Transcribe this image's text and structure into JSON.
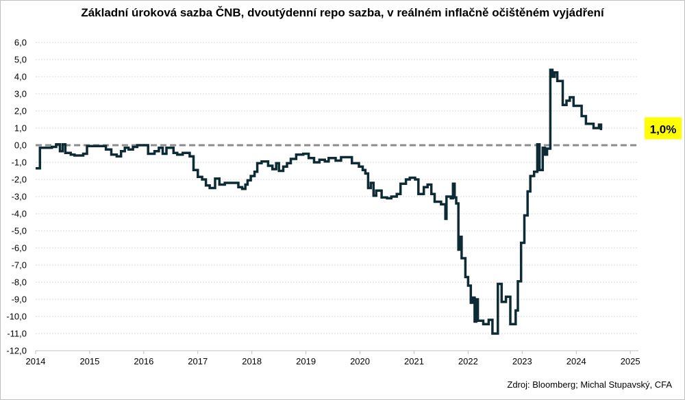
{
  "chart_data": {
    "type": "line",
    "title": "Základní úroková sazba ČNB, dvoutýdenní repo sazba, v reálném inflačně očištěném vyjádření",
    "xlabel": "",
    "ylabel": "",
    "xlim": [
      2014,
      2025.15
    ],
    "ylim": [
      -12,
      6
    ],
    "yticks": [
      "-12,0",
      "-11,0",
      "-10,0",
      "-9,0",
      "-8,0",
      "-7,0",
      "-6,0",
      "-5,0",
      "-4,0",
      "-3,0",
      "-2,0",
      "-1,0",
      "0,0",
      "1,0",
      "2,0",
      "3,0",
      "4,0",
      "5,0",
      "6,0"
    ],
    "xticks": [
      "2014",
      "2015",
      "2016",
      "2017",
      "2018",
      "2019",
      "2020",
      "2021",
      "2022",
      "2023",
      "2024",
      "2025"
    ],
    "grid": true,
    "reference_line": 0,
    "end_label": "1,0%",
    "source": "Zdroj: Bloomberg; Michal Stupavský, CFA",
    "series": [
      {
        "color": "#0d2b35",
        "points": [
          [
            2014.0,
            -1.35
          ],
          [
            2014.08,
            -1.35
          ],
          [
            2014.08,
            -0.15
          ],
          [
            2014.3,
            -0.15
          ],
          [
            2014.3,
            -0.1
          ],
          [
            2014.38,
            -0.1
          ],
          [
            2014.38,
            0.05
          ],
          [
            2014.45,
            0.05
          ],
          [
            2014.45,
            -0.35
          ],
          [
            2014.5,
            -0.35
          ],
          [
            2014.5,
            0.05
          ],
          [
            2014.55,
            0.05
          ],
          [
            2014.55,
            -0.45
          ],
          [
            2014.65,
            -0.45
          ],
          [
            2014.65,
            -0.55
          ],
          [
            2014.72,
            -0.55
          ],
          [
            2014.72,
            -0.6
          ],
          [
            2014.88,
            -0.6
          ],
          [
            2014.88,
            -0.5
          ],
          [
            2014.95,
            -0.5
          ],
          [
            2014.95,
            -0.05
          ],
          [
            2015.1,
            -0.05
          ],
          [
            2015.1,
            -0.05
          ],
          [
            2015.3,
            -0.05
          ],
          [
            2015.3,
            -0.25
          ],
          [
            2015.4,
            -0.25
          ],
          [
            2015.4,
            -0.55
          ],
          [
            2015.5,
            -0.55
          ],
          [
            2015.5,
            -0.65
          ],
          [
            2015.58,
            -0.65
          ],
          [
            2015.58,
            -0.35
          ],
          [
            2015.65,
            -0.35
          ],
          [
            2015.65,
            -0.15
          ],
          [
            2015.72,
            -0.15
          ],
          [
            2015.72,
            -0.25
          ],
          [
            2015.8,
            -0.25
          ],
          [
            2015.8,
            -0.1
          ],
          [
            2015.88,
            -0.1
          ],
          [
            2015.88,
            0.0
          ],
          [
            2016.08,
            0.0
          ],
          [
            2016.08,
            -0.5
          ],
          [
            2016.2,
            -0.5
          ],
          [
            2016.2,
            -0.35
          ],
          [
            2016.28,
            -0.35
          ],
          [
            2016.28,
            -0.15
          ],
          [
            2016.35,
            -0.15
          ],
          [
            2016.35,
            -0.5
          ],
          [
            2016.42,
            -0.5
          ],
          [
            2016.42,
            -0.15
          ],
          [
            2016.55,
            -0.15
          ],
          [
            2016.55,
            -0.45
          ],
          [
            2016.62,
            -0.45
          ],
          [
            2016.62,
            -0.55
          ],
          [
            2016.72,
            -0.55
          ],
          [
            2016.72,
            -0.45
          ],
          [
            2016.85,
            -0.45
          ],
          [
            2016.85,
            -0.65
          ],
          [
            2016.92,
            -0.65
          ],
          [
            2016.92,
            -1.45
          ],
          [
            2017.0,
            -1.45
          ],
          [
            2017.0,
            -1.85
          ],
          [
            2017.08,
            -1.85
          ],
          [
            2017.08,
            -2.0
          ],
          [
            2017.15,
            -2.0
          ],
          [
            2017.15,
            -2.35
          ],
          [
            2017.22,
            -2.35
          ],
          [
            2017.22,
            -2.5
          ],
          [
            2017.32,
            -2.5
          ],
          [
            2017.32,
            -1.95
          ],
          [
            2017.4,
            -1.95
          ],
          [
            2017.4,
            -2.3
          ],
          [
            2017.5,
            -2.3
          ],
          [
            2017.5,
            -2.2
          ],
          [
            2017.75,
            -2.2
          ],
          [
            2017.75,
            -2.45
          ],
          [
            2017.82,
            -2.45
          ],
          [
            2017.82,
            -2.55
          ],
          [
            2017.88,
            -2.55
          ],
          [
            2017.88,
            -2.3
          ],
          [
            2017.92,
            -2.3
          ],
          [
            2017.92,
            -2.05
          ],
          [
            2017.98,
            -2.05
          ],
          [
            2017.98,
            -1.8
          ],
          [
            2018.05,
            -1.8
          ],
          [
            2018.05,
            -1.55
          ],
          [
            2018.1,
            -1.55
          ],
          [
            2018.1,
            -1.05
          ],
          [
            2018.18,
            -1.05
          ],
          [
            2018.18,
            -0.95
          ],
          [
            2018.3,
            -0.95
          ],
          [
            2018.3,
            -1.2
          ],
          [
            2018.38,
            -1.2
          ],
          [
            2018.38,
            -1.4
          ],
          [
            2018.45,
            -1.4
          ],
          [
            2018.45,
            -1.05
          ],
          [
            2018.5,
            -1.05
          ],
          [
            2018.5,
            -1.5
          ],
          [
            2018.58,
            -1.5
          ],
          [
            2018.58,
            -1.25
          ],
          [
            2018.65,
            -1.25
          ],
          [
            2018.65,
            -1.05
          ],
          [
            2018.72,
            -1.05
          ],
          [
            2018.72,
            -0.8
          ],
          [
            2018.82,
            -0.8
          ],
          [
            2018.82,
            -0.55
          ],
          [
            2018.95,
            -0.55
          ],
          [
            2018.95,
            -0.5
          ],
          [
            2019.05,
            -0.5
          ],
          [
            2019.05,
            -0.75
          ],
          [
            2019.15,
            -0.75
          ],
          [
            2019.15,
            -1.0
          ],
          [
            2019.25,
            -1.0
          ],
          [
            2019.25,
            -0.85
          ],
          [
            2019.35,
            -0.85
          ],
          [
            2019.35,
            -0.95
          ],
          [
            2019.42,
            -0.95
          ],
          [
            2019.42,
            -0.75
          ],
          [
            2019.55,
            -0.75
          ],
          [
            2019.55,
            -0.9
          ],
          [
            2019.65,
            -0.9
          ],
          [
            2019.65,
            -0.7
          ],
          [
            2019.85,
            -0.7
          ],
          [
            2019.85,
            -1.05
          ],
          [
            2019.98,
            -1.05
          ],
          [
            2019.98,
            -1.25
          ],
          [
            2020.05,
            -1.25
          ],
          [
            2020.05,
            -1.45
          ],
          [
            2020.1,
            -1.45
          ],
          [
            2020.1,
            -1.65
          ],
          [
            2020.15,
            -1.65
          ],
          [
            2020.15,
            -2.5
          ],
          [
            2020.2,
            -2.5
          ],
          [
            2020.2,
            -2.2
          ],
          [
            2020.25,
            -2.2
          ],
          [
            2020.25,
            -2.95
          ],
          [
            2020.3,
            -2.95
          ],
          [
            2020.3,
            -2.65
          ],
          [
            2020.4,
            -2.65
          ],
          [
            2020.4,
            -3.05
          ],
          [
            2020.5,
            -3.05
          ],
          [
            2020.5,
            -3.1
          ],
          [
            2020.58,
            -3.1
          ],
          [
            2020.58,
            -3.0
          ],
          [
            2020.68,
            -3.0
          ],
          [
            2020.68,
            -2.85
          ],
          [
            2020.75,
            -2.85
          ],
          [
            2020.75,
            -2.25
          ],
          [
            2020.85,
            -2.25
          ],
          [
            2020.85,
            -2.0
          ],
          [
            2020.92,
            -2.0
          ],
          [
            2020.92,
            -1.9
          ],
          [
            2021.02,
            -1.9
          ],
          [
            2021.02,
            -2.0
          ],
          [
            2021.08,
            -2.0
          ],
          [
            2021.08,
            -2.85
          ],
          [
            2021.18,
            -2.85
          ],
          [
            2021.18,
            -2.45
          ],
          [
            2021.25,
            -2.45
          ],
          [
            2021.25,
            -2.3
          ],
          [
            2021.32,
            -2.3
          ],
          [
            2021.32,
            -2.85
          ],
          [
            2021.38,
            -2.85
          ],
          [
            2021.38,
            -3.3
          ],
          [
            2021.5,
            -3.3
          ],
          [
            2021.5,
            -3.45
          ],
          [
            2021.58,
            -3.45
          ],
          [
            2021.58,
            -4.3
          ],
          [
            2021.6,
            -4.3
          ],
          [
            2021.6,
            -3.0
          ],
          [
            2021.68,
            -3.0
          ],
          [
            2021.68,
            -3.1
          ],
          [
            2021.72,
            -3.1
          ],
          [
            2021.72,
            -2.25
          ],
          [
            2021.75,
            -2.25
          ],
          [
            2021.75,
            -3.05
          ],
          [
            2021.78,
            -3.05
          ],
          [
            2021.78,
            -3.4
          ],
          [
            2021.82,
            -3.4
          ],
          [
            2021.82,
            -6.1
          ],
          [
            2021.85,
            -6.1
          ],
          [
            2021.85,
            -5.35
          ],
          [
            2021.88,
            -5.35
          ],
          [
            2021.88,
            -6.6
          ],
          [
            2021.95,
            -6.6
          ],
          [
            2021.95,
            -7.7
          ],
          [
            2022.0,
            -7.7
          ],
          [
            2022.0,
            -8.2
          ],
          [
            2022.05,
            -8.2
          ],
          [
            2022.05,
            -9.2
          ],
          [
            2022.08,
            -9.2
          ],
          [
            2022.08,
            -8.9
          ],
          [
            2022.12,
            -8.9
          ],
          [
            2022.12,
            -10.3
          ],
          [
            2022.15,
            -10.3
          ],
          [
            2022.15,
            -9.0
          ],
          [
            2022.18,
            -9.0
          ],
          [
            2022.18,
            -10.25
          ],
          [
            2022.28,
            -10.25
          ],
          [
            2022.28,
            -10.45
          ],
          [
            2022.38,
            -10.45
          ],
          [
            2022.38,
            -10.2
          ],
          [
            2022.45,
            -10.2
          ],
          [
            2022.45,
            -11.0
          ],
          [
            2022.55,
            -11.0
          ],
          [
            2022.55,
            -8.1
          ],
          [
            2022.62,
            -8.1
          ],
          [
            2022.62,
            -9.15
          ],
          [
            2022.7,
            -9.15
          ],
          [
            2022.7,
            -8.85
          ],
          [
            2022.78,
            -8.85
          ],
          [
            2022.78,
            -10.45
          ],
          [
            2022.88,
            -10.45
          ],
          [
            2022.88,
            -9.65
          ],
          [
            2022.92,
            -9.65
          ],
          [
            2022.92,
            -7.95
          ],
          [
            2022.98,
            -7.95
          ],
          [
            2022.98,
            -5.7
          ],
          [
            2023.04,
            -5.7
          ],
          [
            2023.04,
            -4.1
          ],
          [
            2023.1,
            -4.1
          ],
          [
            2023.1,
            -2.7
          ],
          [
            2023.15,
            -2.7
          ],
          [
            2023.15,
            -1.8
          ],
          [
            2023.22,
            -1.8
          ],
          [
            2023.22,
            -1.55
          ],
          [
            2023.28,
            -1.55
          ],
          [
            2023.28,
            0.05
          ],
          [
            2023.32,
            0.05
          ],
          [
            2023.32,
            -1.45
          ],
          [
            2023.38,
            -1.45
          ],
          [
            2023.38,
            -0.15
          ],
          [
            2023.42,
            -0.15
          ],
          [
            2023.42,
            -0.55
          ],
          [
            2023.46,
            -0.55
          ],
          [
            2023.46,
            -0.2
          ],
          [
            2023.52,
            -0.2
          ],
          [
            2023.52,
            4.4
          ],
          [
            2023.56,
            4.4
          ],
          [
            2023.56,
            4.0
          ],
          [
            2023.6,
            4.0
          ],
          [
            2023.6,
            4.25
          ],
          [
            2023.65,
            4.25
          ],
          [
            2023.65,
            3.75
          ],
          [
            2023.75,
            3.75
          ],
          [
            2023.75,
            2.35
          ],
          [
            2023.82,
            2.35
          ],
          [
            2023.82,
            2.6
          ],
          [
            2023.88,
            2.6
          ],
          [
            2023.88,
            2.8
          ],
          [
            2023.95,
            2.8
          ],
          [
            2023.95,
            2.3
          ],
          [
            2024.1,
            2.3
          ],
          [
            2024.1,
            1.7
          ],
          [
            2024.18,
            1.7
          ],
          [
            2024.18,
            1.25
          ],
          [
            2024.32,
            1.25
          ],
          [
            2024.32,
            1.0
          ],
          [
            2024.42,
            1.0
          ],
          [
            2024.42,
            1.2
          ],
          [
            2024.46,
            1.2
          ],
          [
            2024.46,
            0.95
          ],
          [
            2024.48,
            0.95
          ]
        ]
      }
    ]
  }
}
